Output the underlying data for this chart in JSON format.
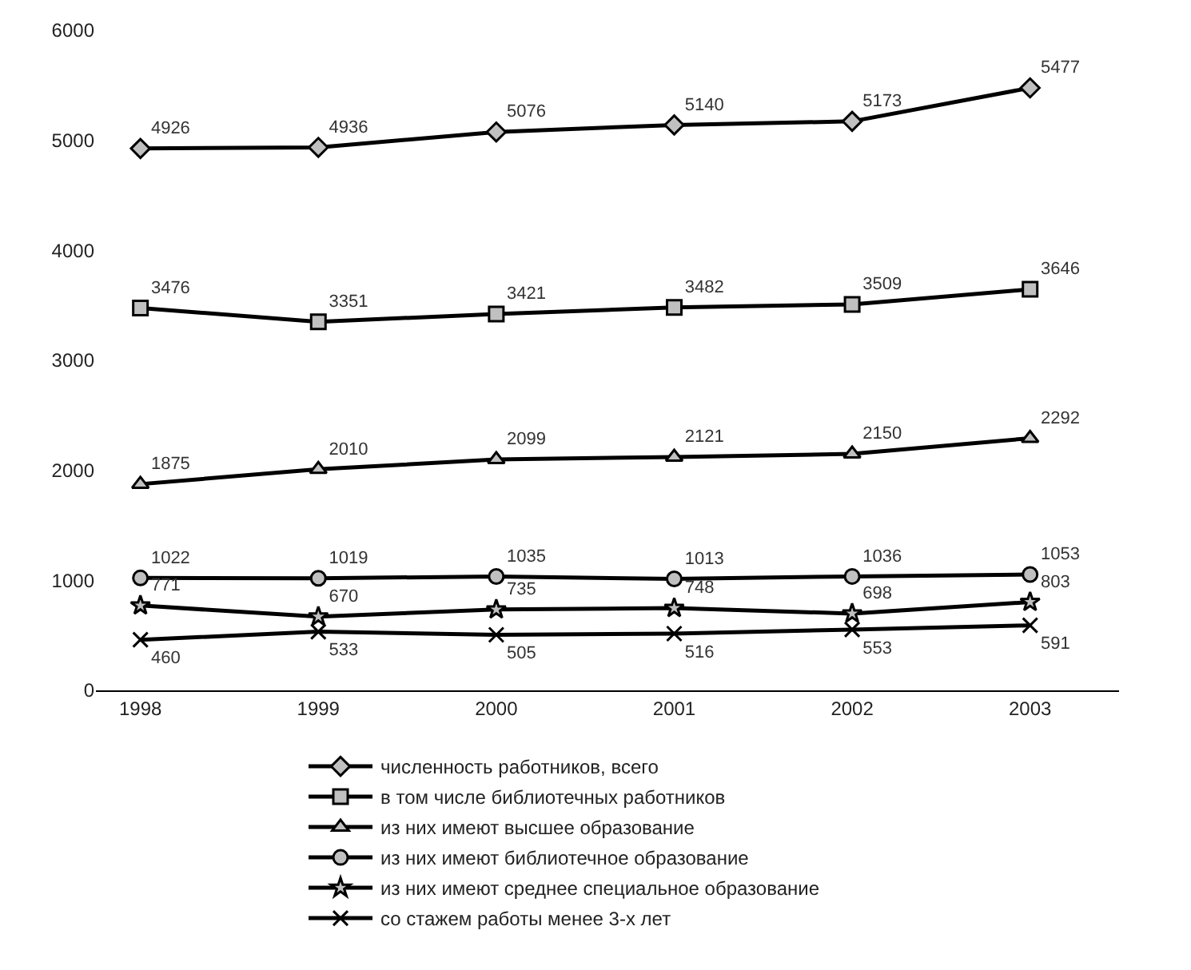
{
  "chart_data": {
    "type": "line",
    "categories": [
      "1998",
      "1999",
      "2000",
      "2001",
      "2002",
      "2003"
    ],
    "series": [
      {
        "name": "численность работников, всего",
        "color": "#000000",
        "marker": "diamond",
        "values": [
          4926,
          4936,
          5076,
          5140,
          5173,
          5477
        ]
      },
      {
        "name": "в том числе библиотечных работников",
        "color": "#000000",
        "marker": "square",
        "values": [
          3476,
          3351,
          3421,
          3482,
          3509,
          3646
        ]
      },
      {
        "name": "из них имеют высшее образование",
        "color": "#000000",
        "marker": "triangle",
        "values": [
          1875,
          2010,
          2099,
          2121,
          2150,
          2292
        ]
      },
      {
        "name": "из них имеют библиотечное образование",
        "color": "#000000",
        "marker": "circle",
        "values": [
          1022,
          1019,
          1035,
          1013,
          1036,
          1053
        ]
      },
      {
        "name": "из них имеют среднее специальное образование",
        "color": "#000000",
        "marker": "star",
        "values": [
          771,
          670,
          735,
          748,
          698,
          803
        ]
      },
      {
        "name": "со стажем работы менее 3-х лет",
        "color": "#000000",
        "marker": "cross",
        "values": [
          460,
          533,
          505,
          516,
          553,
          591
        ]
      }
    ],
    "ylim": [
      0,
      6000
    ],
    "yticks": [
      0,
      1000,
      2000,
      3000,
      4000,
      5000,
      6000
    ],
    "legend": "bottom",
    "data_labels": true,
    "line_style": "solid"
  }
}
